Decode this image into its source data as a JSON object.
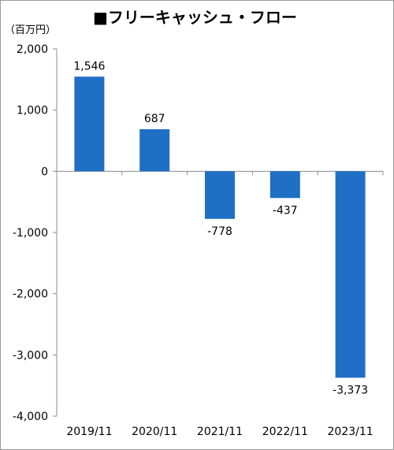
{
  "title": "■フリーキャッシュ・フロー",
  "unit_label": "（百万円）",
  "chart_data": {
    "type": "bar",
    "title": "■フリーキャッシュ・フロー",
    "ylabel": "（百万円）",
    "xlabel": "",
    "categories": [
      "2019/11",
      "2020/11",
      "2021/11",
      "2022/11",
      "2023/11"
    ],
    "values": [
      1546,
      687,
      -778,
      -437,
      -3373
    ],
    "value_labels": [
      "1,546",
      "687",
      "-778",
      "-437",
      "-3,373"
    ],
    "ylim": [
      -4000,
      2000
    ],
    "yticks": [
      2000,
      1000,
      0,
      -1000,
      -2000,
      -3000,
      -4000
    ],
    "ytick_labels": [
      "2,000",
      "1,000",
      "0",
      "-1,000",
      "-2,000",
      "-3,000",
      "-4,000"
    ],
    "grid": false,
    "legend": "none",
    "bar_color": "#1f6fc5"
  }
}
